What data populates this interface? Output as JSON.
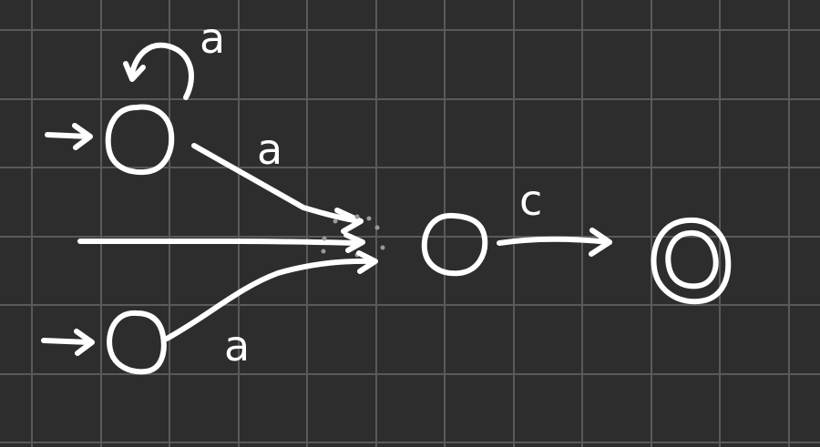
{
  "colors": {
    "background": "#2d2d2d",
    "grid": "#5a5a5a",
    "ink": "#ffffff",
    "eraser": "#9a9a9a"
  },
  "diagram": {
    "kind": "hand-drawn automaton (state diagram) on a grid",
    "states": [
      {
        "id": "q-top",
        "initial": true,
        "accepting": false
      },
      {
        "id": "q-bottom",
        "initial": true,
        "accepting": false
      },
      {
        "id": "q-middle",
        "initial": false,
        "accepting": false
      },
      {
        "id": "q-final",
        "initial": false,
        "accepting": true
      }
    ],
    "transitions": [
      {
        "from": "q-top",
        "to": "q-top",
        "label": "a"
      },
      {
        "from": "q-top",
        "to": "q-middle",
        "label": "a"
      },
      {
        "from": "q-bottom",
        "to": "q-middle",
        "label": "a"
      },
      {
        "from": "q-middle",
        "to": "q-final",
        "label": "c"
      }
    ],
    "labels": {
      "self_loop": "a",
      "top_edge": "a",
      "bottom_edge": "a",
      "middle_edge": "c"
    }
  }
}
